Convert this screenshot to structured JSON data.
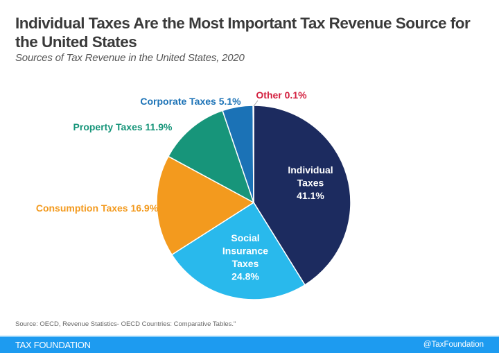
{
  "chart_data": {
    "type": "pie",
    "title": "Individual Taxes Are the Most Important Tax Revenue Source for the United States",
    "subtitle": "Sources of Tax Revenue in the United States, 2020",
    "start": "top, clockwise",
    "slices": [
      {
        "name": "Individual Taxes",
        "value": 41.1,
        "label": "41.1%",
        "color": "#1c2b5f",
        "label_color": "#ffffff",
        "label_position": "inside"
      },
      {
        "name": "Social Insurance Taxes",
        "value": 24.8,
        "label": "24.8%",
        "color": "#29b9ec",
        "label_color": "#ffffff",
        "label_position": "inside"
      },
      {
        "name": "Consumption Taxes",
        "value": 16.9,
        "label": "16.9%",
        "color": "#f39a1e",
        "label_color": "#f39a1e",
        "label_position": "outside"
      },
      {
        "name": "Property Taxes",
        "value": 11.9,
        "label": "11.9%",
        "color": "#17957a",
        "label_color": "#17957a",
        "label_position": "outside"
      },
      {
        "name": "Corporate Taxes",
        "value": 5.1,
        "label": "5.1%",
        "color": "#1b72b6",
        "label_color": "#1b72b6",
        "label_position": "outside"
      },
      {
        "name": "Other",
        "value": 0.1,
        "label": "0.1%",
        "color": "#d3203f",
        "label_color": "#d3203f",
        "label_position": "outside"
      }
    ]
  },
  "source": "Source: OECD, Revenue Statistics- OECD Countries: Comparative Tables.\"",
  "footer": {
    "brand": "TAX FOUNDATION",
    "handle": "@TaxFoundation"
  }
}
